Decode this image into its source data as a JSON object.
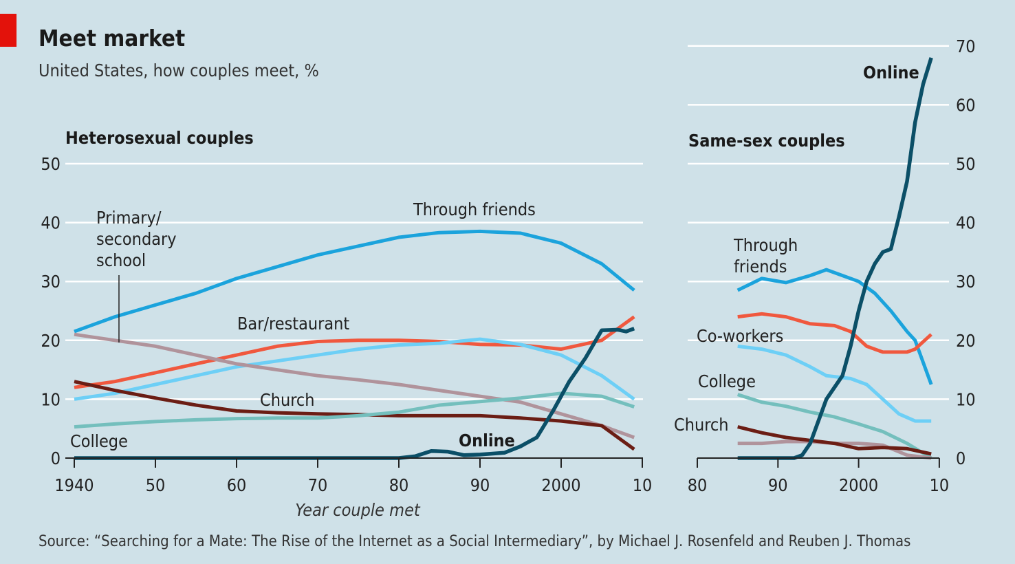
{
  "title": "Meet market",
  "subtitle": "United States, how couples meet, %",
  "colors": {
    "background": "#cfe1e8",
    "tag": "#e3120b",
    "friends": "#1ba3dc",
    "bar": "#f0583e",
    "coworkers": "#6dcff6",
    "school": "#b0939b",
    "church": "#6b1d14",
    "college": "#74bfbd",
    "online": "#0b4f67",
    "grid": "#ffffff"
  },
  "source": "Source: “Searching for a Mate: The Rise of the Internet as a Social Intermediary”, by Michael J. Rosenfeld and Reuben J. Thomas",
  "chart_data": [
    {
      "type": "line",
      "title": "Heterosexual couples",
      "xlabel": "Year couple met",
      "ylabel": "",
      "xlim": [
        1940,
        2010
      ],
      "ylim": [
        0,
        50
      ],
      "yticks": [
        "0",
        "10",
        "20",
        "30",
        "40",
        "50"
      ],
      "xticks": [
        "1940",
        "50",
        "60",
        "70",
        "80",
        "90",
        "2000",
        "10"
      ],
      "grid": true,
      "series": [
        {
          "name": "Through friends",
          "color": "friends",
          "x": [
            1940,
            1945,
            1950,
            1955,
            1960,
            1965,
            1970,
            1975,
            1980,
            1985,
            1990,
            1995,
            2000,
            2005,
            2009
          ],
          "y": [
            21.5,
            24,
            26,
            28,
            30.5,
            32.5,
            34.5,
            36,
            37.5,
            38.3,
            38.5,
            38.2,
            36.5,
            33,
            28.5
          ]
        },
        {
          "name": "Bar/restaurant",
          "color": "bar",
          "x": [
            1940,
            1945,
            1950,
            1955,
            1960,
            1965,
            1970,
            1975,
            1980,
            1985,
            1990,
            1995,
            2000,
            2005,
            2009
          ],
          "y": [
            12,
            13,
            14.5,
            16,
            17.5,
            19,
            19.8,
            20,
            20,
            19.8,
            19.3,
            19.2,
            18.5,
            20,
            24
          ]
        },
        {
          "color": "coworkers",
          "x": [
            1940,
            1945,
            1950,
            1955,
            1960,
            1965,
            1970,
            1975,
            1980,
            1985,
            1990,
            1995,
            2000,
            2005,
            2009
          ],
          "y": [
            10,
            11,
            12.5,
            14,
            15.5,
            16.5,
            17.5,
            18.5,
            19.2,
            19.5,
            20.2,
            19.3,
            17.5,
            14,
            10
          ]
        },
        {
          "name": "Primary/ secondary school",
          "color": "school",
          "x": [
            1940,
            1945,
            1950,
            1955,
            1960,
            1965,
            1970,
            1975,
            1980,
            1985,
            1990,
            1995,
            2000,
            2005,
            2009
          ],
          "y": [
            21,
            20,
            19,
            17.5,
            16,
            15,
            14,
            13.3,
            12.5,
            11.5,
            10.5,
            9.5,
            7.5,
            5.5,
            3.5
          ]
        },
        {
          "name": "Church",
          "color": "church",
          "x": [
            1940,
            1945,
            1950,
            1955,
            1960,
            1965,
            1970,
            1975,
            1980,
            1985,
            1990,
            1995,
            2000,
            2005,
            2009
          ],
          "y": [
            13,
            11.5,
            10.2,
            9,
            8,
            7.7,
            7.5,
            7.4,
            7.2,
            7.2,
            7.2,
            6.8,
            6.3,
            5.5,
            1.5
          ]
        },
        {
          "name": "College",
          "color": "college",
          "x": [
            1940,
            1945,
            1950,
            1955,
            1960,
            1965,
            1970,
            1975,
            1980,
            1985,
            1990,
            1995,
            2000,
            2005,
            2009
          ],
          "y": [
            5.3,
            5.8,
            6.2,
            6.5,
            6.7,
            6.8,
            6.8,
            7.2,
            7.8,
            9,
            9.6,
            10.2,
            11,
            10.5,
            8.7
          ]
        },
        {
          "name": "Online",
          "color": "online",
          "x": [
            1940,
            1980,
            1982,
            1984,
            1986,
            1988,
            1990,
            1993,
            1995,
            1997,
            1999,
            2001,
            2003,
            2005,
            2007,
            2008,
            2009
          ],
          "y": [
            0,
            0,
            0.3,
            1.2,
            1.1,
            0.5,
            0.6,
            0.9,
            2,
            3.5,
            8,
            13,
            17,
            21.7,
            21.8,
            21.5,
            22
          ]
        }
      ]
    },
    {
      "type": "line",
      "title": "Same-sex couples",
      "xlim": [
        1980,
        2010
      ],
      "ylim": [
        0,
        70
      ],
      "yticks": [
        "0",
        "10",
        "20",
        "30",
        "40",
        "50",
        "60",
        "70"
      ],
      "xticks": [
        "80",
        "90",
        "2000",
        "10"
      ],
      "grid": true,
      "series": [
        {
          "name": "Through friends",
          "color": "friends",
          "x": [
            1985,
            1988,
            1991,
            1994,
            1996,
            1998,
            2000,
            2002,
            2004,
            2006,
            2007,
            2009
          ],
          "y": [
            28.5,
            30.5,
            29.8,
            31,
            32,
            31,
            30,
            28,
            25,
            21.5,
            20,
            12.5
          ]
        },
        {
          "color": "bar",
          "x": [
            1985,
            1988,
            1991,
            1994,
            1997,
            1999,
            2001,
            2003,
            2006,
            2007,
            2009
          ],
          "y": [
            24,
            24.5,
            24,
            22.8,
            22.5,
            21.5,
            19,
            18,
            18,
            18.5,
            21
          ]
        },
        {
          "name": "Co-workers",
          "color": "coworkers",
          "x": [
            1985,
            1988,
            1991,
            1994,
            1996,
            1999,
            2001,
            2003,
            2005,
            2007,
            2009
          ],
          "y": [
            19,
            18.5,
            17.5,
            15.5,
            14,
            13.5,
            12.5,
            10,
            7.5,
            6.3,
            6.3
          ]
        },
        {
          "name": "College",
          "color": "college",
          "x": [
            1985,
            1988,
            1991,
            1994,
            1997,
            2000,
            2003,
            2006,
            2009
          ],
          "y": [
            10.8,
            9.5,
            8.8,
            7.8,
            7,
            5.8,
            4.5,
            2.5,
            0
          ]
        },
        {
          "color": "school",
          "x": [
            1985,
            1988,
            1991,
            1994,
            1997,
            2000,
            2003,
            2006,
            2009
          ],
          "y": [
            2.5,
            2.5,
            2.8,
            2.8,
            2.5,
            2.5,
            2.2,
            0.5,
            0
          ]
        },
        {
          "name": "Church",
          "color": "church",
          "x": [
            1985,
            1988,
            1991,
            1994,
            1997,
            2000,
            2003,
            2006,
            2009
          ],
          "y": [
            5.3,
            4.3,
            3.5,
            3,
            2.5,
            1.6,
            1.8,
            1.6,
            0.7
          ]
        },
        {
          "name": "Online",
          "color": "online",
          "x": [
            1985,
            1992,
            1993,
            1994,
            1996,
            1998,
            1999,
            2000,
            2001,
            2002,
            2003,
            2004,
            2005,
            2006,
            2007,
            2008,
            2009
          ],
          "y": [
            0,
            0,
            0.5,
            2.5,
            10,
            14,
            19,
            25,
            30,
            33,
            35,
            35.5,
            41,
            47,
            57,
            63.5,
            68
          ]
        }
      ]
    }
  ]
}
